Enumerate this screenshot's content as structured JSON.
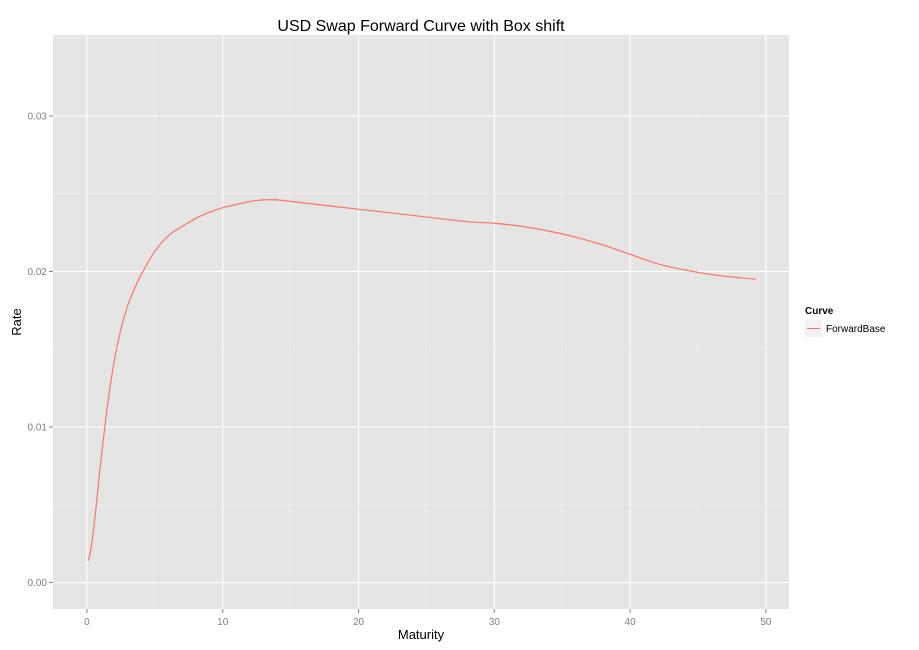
{
  "chart_data": {
    "type": "line",
    "title": "USD Swap Forward Curve with Box shift",
    "xlabel": "Maturity",
    "ylabel": "Rate",
    "xlim": [
      -2.5,
      51.7
    ],
    "ylim": [
      -0.0017,
      0.0352
    ],
    "x_ticks": [
      0,
      10,
      20,
      30,
      40,
      50
    ],
    "x_tick_labels": [
      "0",
      "10",
      "20",
      "30",
      "40",
      "50"
    ],
    "y_ticks": [
      0.0,
      0.01,
      0.02,
      0.03
    ],
    "y_tick_labels": [
      "0.00",
      "0.01",
      "0.02",
      "0.03"
    ],
    "grid": true,
    "legend": {
      "title": "Curve",
      "position": "right"
    },
    "series": [
      {
        "name": "ForwardBase",
        "color": "#f8766d",
        "x": [
          0.08,
          0.25,
          0.5,
          0.75,
          1,
          1.5,
          2,
          2.5,
          3,
          3.5,
          4,
          5,
          6,
          7,
          8,
          9,
          10,
          11,
          12,
          13,
          14,
          15,
          16,
          18,
          20,
          22,
          24,
          26,
          28,
          30,
          32,
          34,
          36,
          38,
          40,
          42,
          44,
          46,
          48,
          49.25
        ],
        "y": [
          0.0014,
          0.0019,
          0.0035,
          0.0055,
          0.0076,
          0.0113,
          0.0142,
          0.0163,
          0.0178,
          0.0189,
          0.0198,
          0.0213,
          0.0223,
          0.0229,
          0.0234,
          0.0238,
          0.0241,
          0.0243,
          0.0245,
          0.0246,
          0.0246,
          0.0245,
          0.0244,
          0.0242,
          0.024,
          0.0238,
          0.0236,
          0.0234,
          0.0232,
          0.0231,
          0.0229,
          0.0226,
          0.0222,
          0.0217,
          0.0211,
          0.0205,
          0.0201,
          0.0198,
          0.0196,
          0.0195
        ]
      }
    ]
  }
}
